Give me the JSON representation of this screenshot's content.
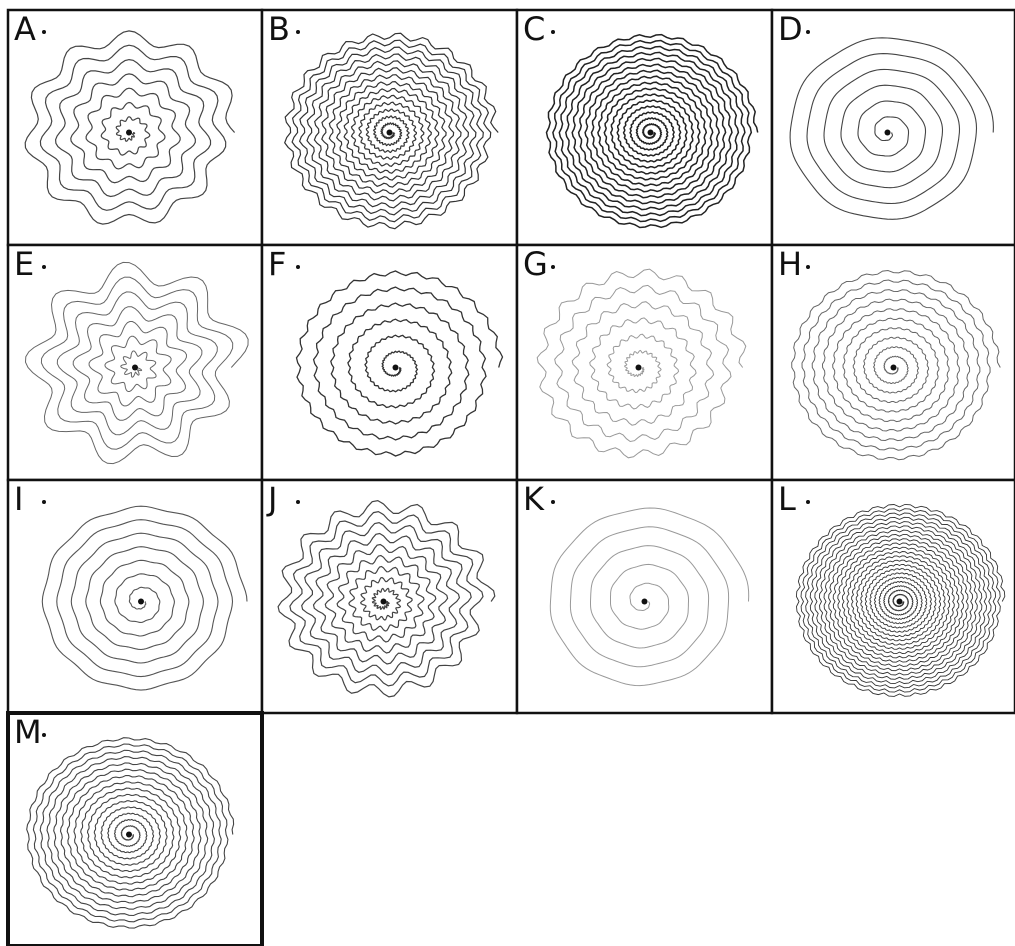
{
  "panels": [
    {
      "label": "A"
    },
    {
      "label": "B"
    },
    {
      "label": "C"
    },
    {
      "label": "D"
    },
    {
      "label": "E"
    },
    {
      "label": "F"
    },
    {
      "label": "G"
    },
    {
      "label": "H"
    },
    {
      "label": "I"
    },
    {
      "label": "J"
    },
    {
      "label": "K"
    },
    {
      "label": "L"
    },
    {
      "label": "M"
    }
  ]
}
